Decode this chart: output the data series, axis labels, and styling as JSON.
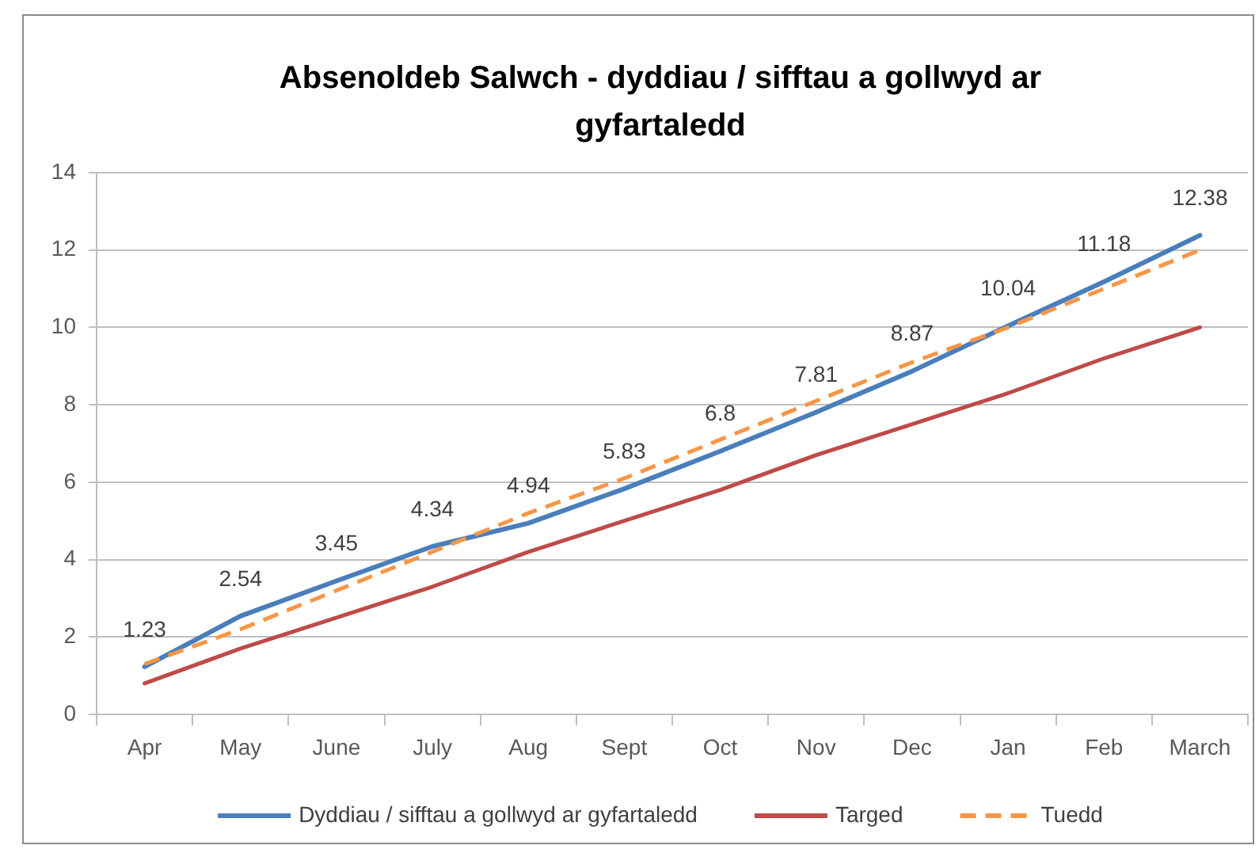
{
  "chart_data": {
    "type": "line",
    "title": "Absenoldeb Salwch - dyddiau / sifftau a gollwyd ar gyfartaledd",
    "categories": [
      "Apr",
      "May",
      "June",
      "July",
      "Aug",
      "Sept",
      "Oct",
      "Nov",
      "Dec",
      "Jan",
      "Feb",
      "March"
    ],
    "series": [
      {
        "name": "Dyddiau / sifftau a gollwyd ar gyfartaledd",
        "color": "#4a7ebb",
        "values": [
          1.23,
          2.54,
          3.45,
          4.34,
          4.94,
          5.83,
          6.8,
          7.81,
          8.87,
          10.04,
          11.18,
          12.38
        ],
        "value_labels": [
          "1.23",
          "2.54",
          "3.45",
          "4.34",
          "4.94",
          "5.83",
          "6.8",
          "7.81",
          "8.87",
          "10.04",
          "11.18",
          "12.38"
        ]
      },
      {
        "name": "Targed",
        "color": "#be4b48",
        "values": [
          0.8,
          1.7,
          2.5,
          3.3,
          4.2,
          5.0,
          5.8,
          6.7,
          7.5,
          8.3,
          9.2,
          10.0
        ]
      },
      {
        "name": "Tuedd",
        "color": "#f79646",
        "line_style": "dashed",
        "values": [
          1.3,
          2.2,
          3.2,
          4.2,
          5.2,
          6.1,
          7.1,
          8.1,
          9.1,
          10.0,
          11.0,
          12.0
        ]
      }
    ],
    "ylim": [
      0,
      14
    ],
    "yticks": [
      0,
      2,
      4,
      6,
      8,
      10,
      12,
      14
    ],
    "grid": "y",
    "legend": "bottom",
    "marker": "none"
  }
}
